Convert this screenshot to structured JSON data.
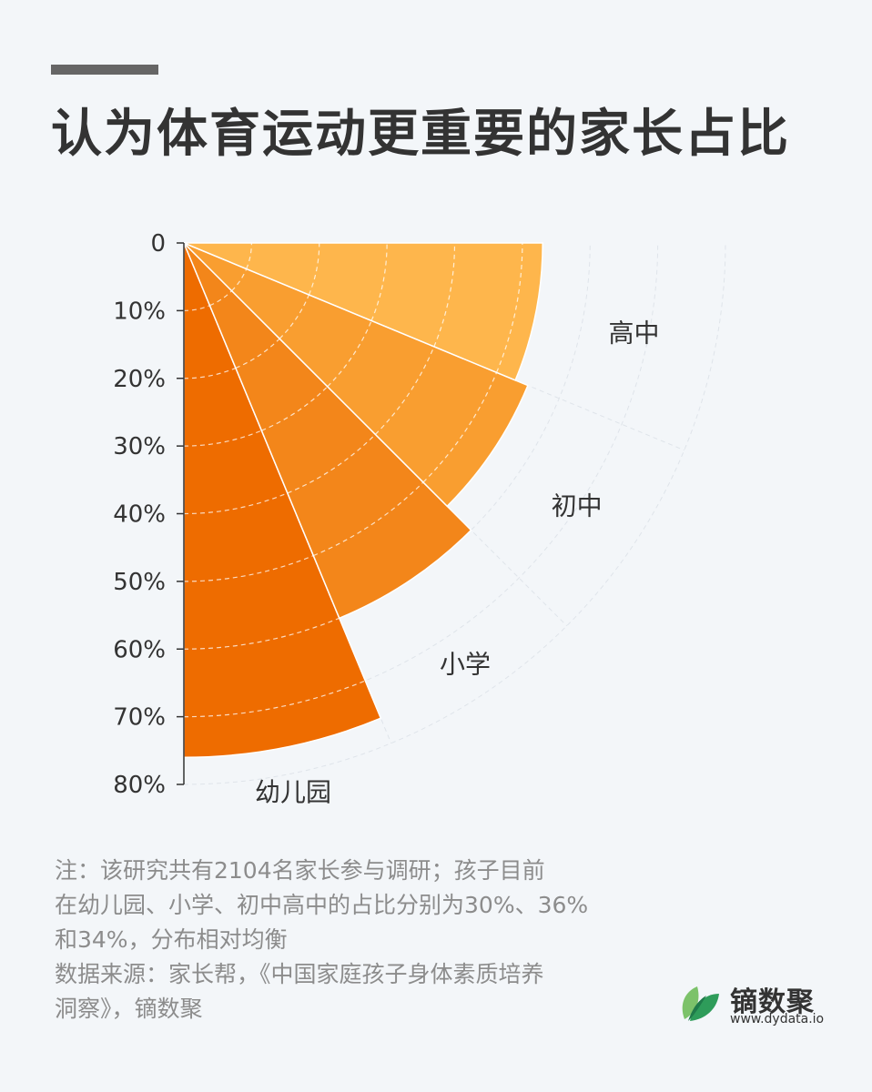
{
  "header": {
    "title": "认为体育运动更重要的家长占比"
  },
  "chart_data": {
    "type": "polar-bar",
    "title": "认为体育运动更重要的家长占比",
    "categories": [
      "幼儿园",
      "小学",
      "初中",
      "高中"
    ],
    "values": [
      76,
      60,
      55,
      53
    ],
    "colors": [
      "#ee6c00",
      "#f3861a",
      "#f99e30",
      "#feb64c"
    ],
    "radial_axis": {
      "range": [
        0,
        80
      ],
      "ticks": [
        0,
        10,
        20,
        30,
        40,
        50,
        60,
        70,
        80
      ],
      "tick_labels": [
        "0",
        "10%",
        "20%",
        "30%",
        "40%",
        "50%",
        "60%",
        "70%",
        "80%"
      ]
    },
    "angular_span_degrees": 90,
    "grid": true
  },
  "footnote": {
    "lines": [
      "注：该研究共有2104名家长参与调研；孩子目前",
      "在幼儿园、小学、初中高中的占比分别为30%、36%",
      "和34%，分布相对均衡",
      "数据来源：家长帮，《中国家庭孩子身体素质培养",
      "洞察》，镝数聚"
    ]
  },
  "brand": {
    "name": "镝数聚",
    "url": "www.dydata.io",
    "logo_icon": "leaf-logo-icon",
    "logo_colors": [
      "#2e9c5a",
      "#7cc26a",
      "#1f7a4a"
    ]
  }
}
